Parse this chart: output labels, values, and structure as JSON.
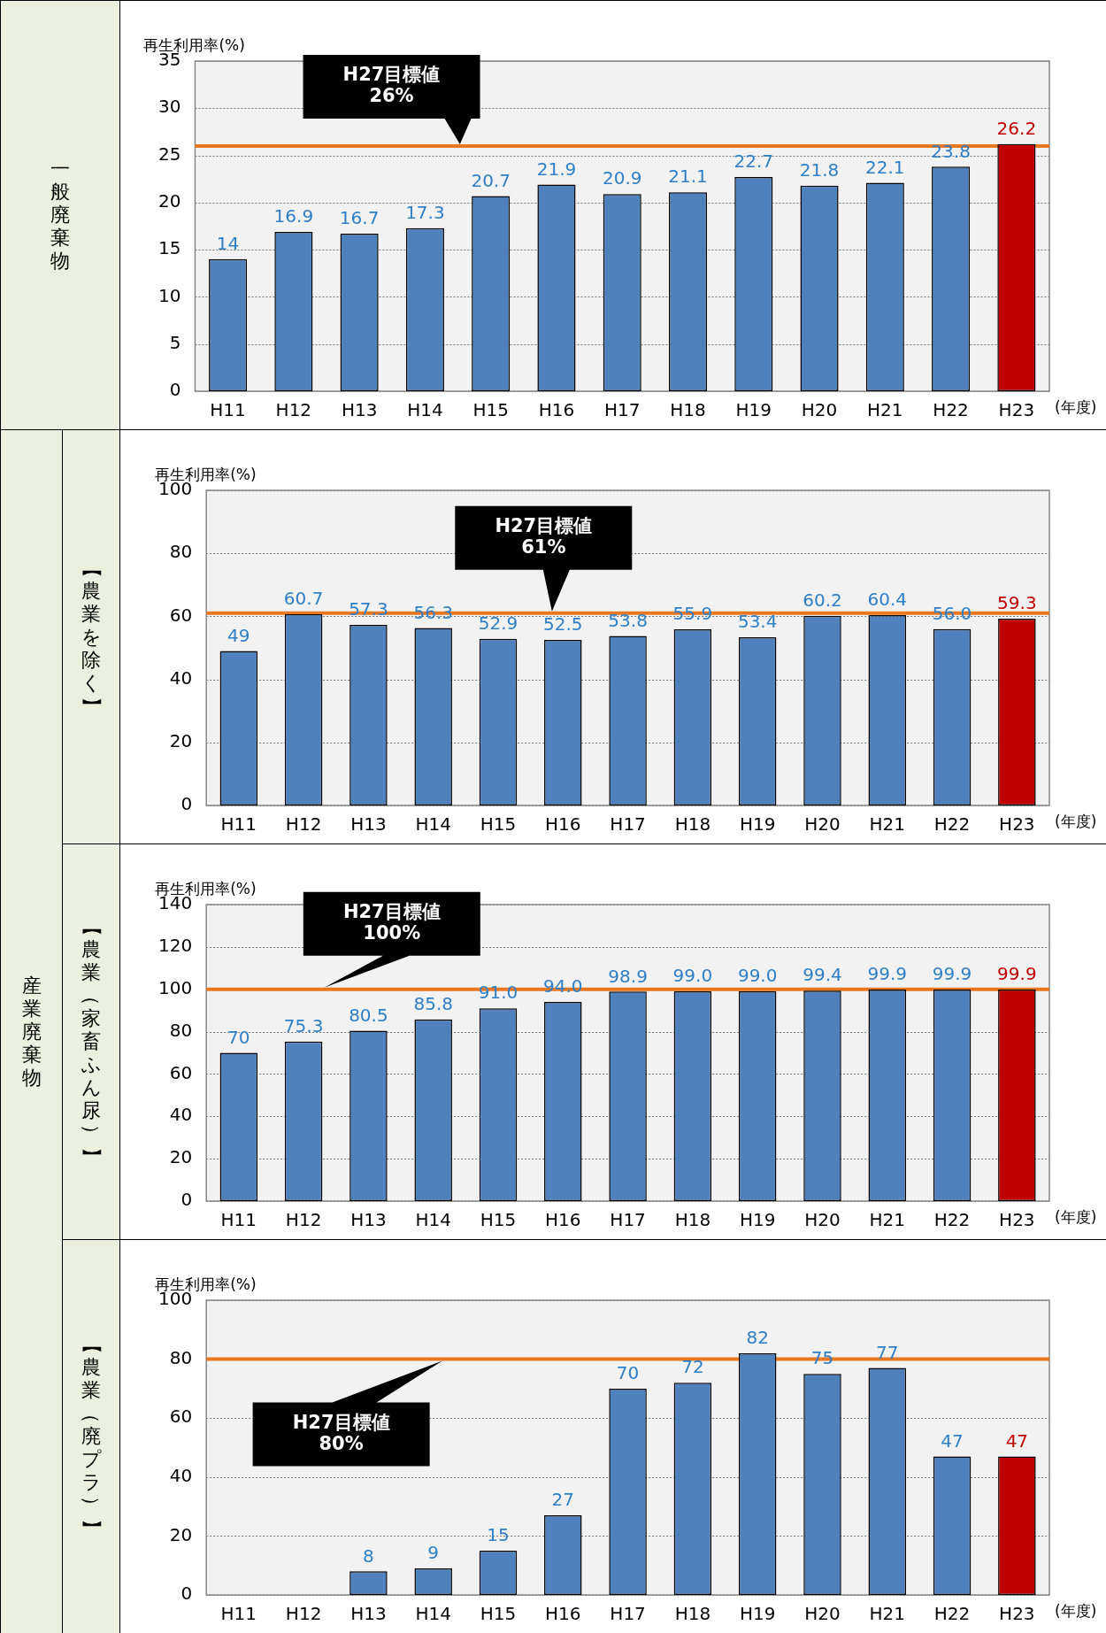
{
  "chart_data": [
    {
      "type": "bar",
      "title": "一般廃棄物",
      "ylabel": "再生利用率(%)",
      "xlabel": "(年度)",
      "categories": [
        "H11",
        "H12",
        "H13",
        "H14",
        "H15",
        "H16",
        "H17",
        "H18",
        "H19",
        "H20",
        "H21",
        "H22",
        "H23"
      ],
      "values": [
        14,
        16.9,
        16.7,
        17.3,
        20.7,
        21.9,
        20.9,
        21.1,
        22.7,
        21.8,
        22.1,
        23.8,
        26.2
      ],
      "value_labels": [
        "14",
        "16.9",
        "16.7",
        "17.3",
        "20.7",
        "21.9",
        "20.9",
        "21.1",
        "22.7",
        "21.8",
        "22.1",
        "23.8",
        "26.2"
      ],
      "colors": [
        "#4f81bd",
        "#4f81bd",
        "#4f81bd",
        "#4f81bd",
        "#4f81bd",
        "#4f81bd",
        "#4f81bd",
        "#4f81bd",
        "#4f81bd",
        "#4f81bd",
        "#4f81bd",
        "#4f81bd",
        "#c00000"
      ],
      "ylim": [
        0,
        35
      ],
      "yticks": [
        0,
        5,
        10,
        15,
        20,
        25,
        30,
        35
      ],
      "grid": "y",
      "legend": false,
      "ref_lines": [
        {
          "axis": "y",
          "value": 26,
          "label": "H27目標値 26%",
          "color": "#e87722"
        }
      ]
    },
    {
      "type": "bar",
      "title": "【農業を除く】",
      "ylabel": "再生利用率(%)",
      "xlabel": "(年度)",
      "categories": [
        "H11",
        "H12",
        "H13",
        "H14",
        "H15",
        "H16",
        "H17",
        "H18",
        "H19",
        "H20",
        "H21",
        "H22",
        "H23"
      ],
      "values": [
        49,
        60.7,
        57.3,
        56.3,
        52.9,
        52.5,
        53.8,
        55.9,
        53.4,
        60.2,
        60.4,
        56.0,
        59.3
      ],
      "value_labels": [
        "49",
        "60.7",
        "57.3",
        "56.3",
        "52.9",
        "52.5",
        "53.8",
        "55.9",
        "53.4",
        "60.2",
        "60.4",
        "56.0",
        "59.3"
      ],
      "colors": [
        "#4f81bd",
        "#4f81bd",
        "#4f81bd",
        "#4f81bd",
        "#4f81bd",
        "#4f81bd",
        "#4f81bd",
        "#4f81bd",
        "#4f81bd",
        "#4f81bd",
        "#4f81bd",
        "#4f81bd",
        "#c00000"
      ],
      "ylim": [
        0,
        100
      ],
      "yticks": [
        0,
        20,
        40,
        60,
        80,
        100
      ],
      "grid": "y",
      "legend": false,
      "ref_lines": [
        {
          "axis": "y",
          "value": 61,
          "label": "H27目標値 61%",
          "color": "#e87722"
        }
      ]
    },
    {
      "type": "bar",
      "title": "【農業（家畜ふん尿）】",
      "subtitle": "産業廃棄物",
      "ylabel": "再生利用率(%)",
      "xlabel": "(年度)",
      "categories": [
        "H11",
        "H12",
        "H13",
        "H14",
        "H15",
        "H16",
        "H17",
        "H18",
        "H19",
        "H20",
        "H21",
        "H22",
        "H23"
      ],
      "values": [
        70,
        75.3,
        80.5,
        85.8,
        91.0,
        94.0,
        98.9,
        99.0,
        99.0,
        99.4,
        99.9,
        99.9,
        99.9
      ],
      "value_labels": [
        "70",
        "75.3",
        "80.5",
        "85.8",
        "91.0",
        "94.0",
        "98.9",
        "99.0",
        "99.0",
        "99.4",
        "99.9",
        "99.9",
        "99.9"
      ],
      "colors": [
        "#4f81bd",
        "#4f81bd",
        "#4f81bd",
        "#4f81bd",
        "#4f81bd",
        "#4f81bd",
        "#4f81bd",
        "#4f81bd",
        "#4f81bd",
        "#4f81bd",
        "#4f81bd",
        "#4f81bd",
        "#c00000"
      ],
      "ylim": [
        0,
        140
      ],
      "yticks": [
        0,
        20,
        40,
        60,
        80,
        100,
        120,
        140
      ],
      "grid": "y",
      "legend": false,
      "ref_lines": [
        {
          "axis": "y",
          "value": 100,
          "label": "H27目標値 100%",
          "color": "#e87722"
        }
      ]
    },
    {
      "type": "bar",
      "title": "【農業（廃プラ）】",
      "ylabel": "再生利用率(%)",
      "xlabel": "(年度)",
      "categories": [
        "H11",
        "H12",
        "H13",
        "H14",
        "H15",
        "H16",
        "H17",
        "H18",
        "H19",
        "H20",
        "H21",
        "H22",
        "H23"
      ],
      "values": [
        null,
        null,
        8,
        9,
        15,
        27,
        70,
        72,
        82,
        75,
        77,
        47,
        47
      ],
      "value_labels": [
        null,
        null,
        "8",
        "9",
        "15",
        "27",
        "70",
        "72",
        "82",
        "75",
        "77",
        "47",
        "47"
      ],
      "colors": [
        "#4f81bd",
        "#4f81bd",
        "#4f81bd",
        "#4f81bd",
        "#4f81bd",
        "#4f81bd",
        "#4f81bd",
        "#4f81bd",
        "#4f81bd",
        "#4f81bd",
        "#4f81bd",
        "#4f81bd",
        "#c00000"
      ],
      "ylim": [
        0,
        100
      ],
      "yticks": [
        0,
        20,
        40,
        60,
        80,
        100
      ],
      "grid": "y",
      "legend": false,
      "ref_lines": [
        {
          "axis": "y",
          "value": 80,
          "label": "H27目標値 80%",
          "color": "#e87722"
        }
      ]
    }
  ]
}
